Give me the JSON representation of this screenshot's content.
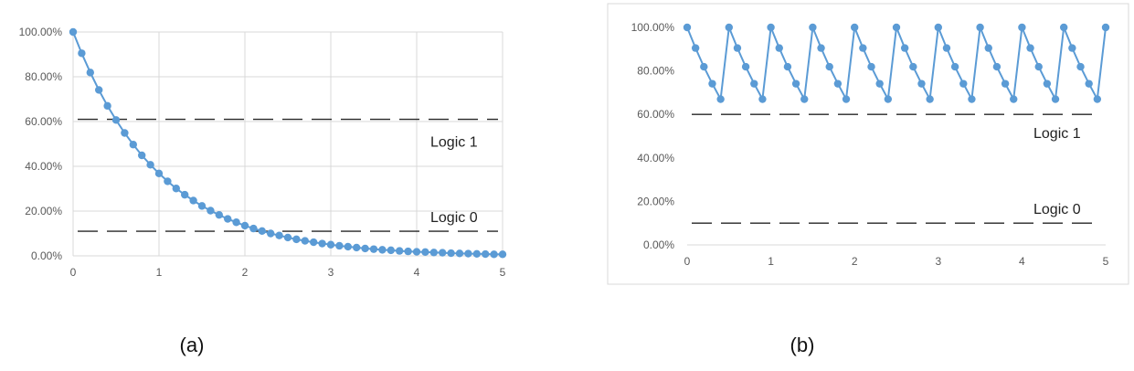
{
  "colors": {
    "series": "#5b9bd5",
    "grid": "#d9d9d9",
    "threshold": "#262626",
    "frame": "#d9d9d9"
  },
  "chart_data": [
    {
      "type": "line",
      "caption": "(a)",
      "grid": true,
      "xlim": [
        0,
        5
      ],
      "ylim": [
        0,
        100
      ],
      "x_ticks": [
        0,
        1,
        2,
        3,
        4,
        5
      ],
      "x_tick_labels": [
        "0",
        "1",
        "2",
        "3",
        "4",
        "5"
      ],
      "y_ticks": [
        0,
        20,
        40,
        60,
        80,
        100
      ],
      "y_tick_labels": [
        "0.00%",
        "20.00%",
        "40.00%",
        "60.00%",
        "80.00%",
        "100.00%"
      ],
      "series": [
        {
          "x": [
            0,
            0.1,
            0.2,
            0.3,
            0.4,
            0.5,
            0.6,
            0.7,
            0.8,
            0.9,
            1,
            1.1,
            1.2,
            1.3,
            1.4,
            1.5,
            1.6,
            1.7,
            1.8,
            1.9,
            2,
            2.1,
            2.2,
            2.3,
            2.4,
            2.5,
            2.6,
            2.7,
            2.8,
            2.9,
            3,
            3.1,
            3.2,
            3.3,
            3.4,
            3.5,
            3.6,
            3.7,
            3.8,
            3.9,
            4,
            4.1,
            4.2,
            4.3,
            4.4,
            4.5,
            4.6,
            4.7,
            4.8,
            4.9,
            5
          ],
          "y": [
            100,
            90.5,
            81.9,
            74.1,
            67.0,
            60.7,
            54.9,
            49.7,
            44.9,
            40.7,
            36.8,
            33.3,
            30.1,
            27.3,
            24.7,
            22.3,
            20.2,
            18.3,
            16.5,
            15.0,
            13.5,
            12.2,
            11.1,
            10.0,
            9.1,
            8.2,
            7.4,
            6.7,
            6.1,
            5.5,
            5.0,
            4.5,
            4.1,
            3.7,
            3.3,
            3.0,
            2.7,
            2.5,
            2.2,
            2.0,
            1.8,
            1.7,
            1.5,
            1.4,
            1.2,
            1.1,
            1.0,
            0.9,
            0.8,
            0.7,
            0.7
          ]
        }
      ],
      "thresholds": [
        {
          "label": "Logic 1",
          "y": 61
        },
        {
          "label": "Logic 0",
          "y": 11
        }
      ]
    },
    {
      "type": "line",
      "caption": "(b)",
      "grid": false,
      "xlim": [
        0,
        5
      ],
      "ylim": [
        0,
        100
      ],
      "x_ticks": [
        0,
        1,
        2,
        3,
        4,
        5
      ],
      "x_tick_labels": [
        "0",
        "1",
        "2",
        "3",
        "4",
        "5"
      ],
      "y_ticks": [
        0,
        20,
        40,
        60,
        80,
        100
      ],
      "y_tick_labels": [
        "0.00%",
        "20.00%",
        "40.00%",
        "60.00%",
        "80.00%",
        "100.00%"
      ],
      "series": [
        {
          "x": [
            0,
            0.1,
            0.2,
            0.3,
            0.4,
            0.5,
            0.6,
            0.7,
            0.8,
            0.9,
            1,
            1.1,
            1.2,
            1.3,
            1.4,
            1.5,
            1.6,
            1.7,
            1.8,
            1.9,
            2,
            2.1,
            2.2,
            2.3,
            2.4,
            2.5,
            2.6,
            2.7,
            2.8,
            2.9,
            3,
            3.1,
            3.2,
            3.3,
            3.4,
            3.5,
            3.6,
            3.7,
            3.8,
            3.9,
            4,
            4.1,
            4.2,
            4.3,
            4.4,
            4.5,
            4.6,
            4.7,
            4.8,
            4.9,
            5
          ],
          "y": [
            100,
            90.5,
            81.9,
            74.1,
            67.0,
            100,
            90.5,
            81.9,
            74.1,
            67.0,
            100,
            90.5,
            81.9,
            74.1,
            67.0,
            100,
            90.5,
            81.9,
            74.1,
            67.0,
            100,
            90.5,
            81.9,
            74.1,
            67.0,
            100,
            90.5,
            81.9,
            74.1,
            67.0,
            100,
            90.5,
            81.9,
            74.1,
            67.0,
            100,
            90.5,
            81.9,
            74.1,
            67.0,
            100,
            90.5,
            81.9,
            74.1,
            67.0,
            100,
            90.5,
            81.9,
            74.1,
            67.0,
            100
          ]
        }
      ],
      "thresholds": [
        {
          "label": "Logic 1",
          "y": 60
        },
        {
          "label": "Logic 0",
          "y": 10
        }
      ]
    }
  ]
}
